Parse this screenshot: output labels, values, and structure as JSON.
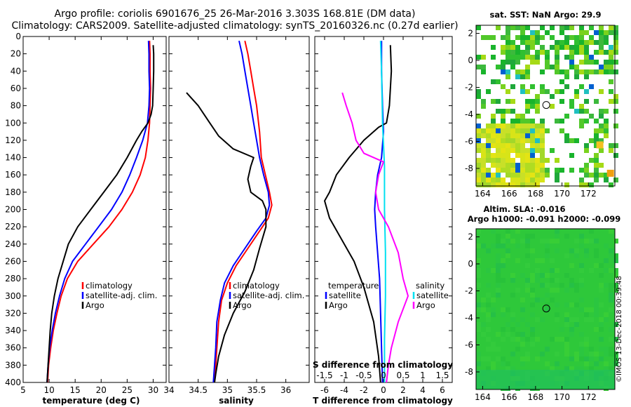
{
  "header": {
    "line1": "Argo profile: coriolis 6901676_25 26-Mar-2016 3.303S 168.81E (DM data)",
    "line2": "Climatology: CARS2009. Satellite-adjusted climatology: synTS_20160326.nc (0.27d earlier)"
  },
  "footer_stamp": "©IMOS 13-Dec-2018 00:39:48",
  "colors": {
    "climatology": "#ff0000",
    "satellite": "#0000ff",
    "argo": "#000000",
    "sat_s": "#00e0f0",
    "argo_s": "#ff00ff"
  },
  "chart_data": [
    {
      "id": "temperature",
      "type": "line",
      "xlabel": "temperature (deg C)",
      "ylabel": "",
      "xlim": [
        5,
        32.5
      ],
      "ylim": [
        400,
        0
      ],
      "xticks": [
        5,
        10,
        15,
        20,
        25,
        30
      ],
      "yticks": [
        0,
        20,
        40,
        60,
        80,
        100,
        120,
        140,
        160,
        180,
        200,
        220,
        240,
        260,
        280,
        300,
        320,
        340,
        360,
        380,
        400
      ],
      "legend": {
        "position": "bottom-center",
        "entries": [
          "climatology",
          "satellite-adj. clim.",
          "Argo"
        ]
      },
      "series": [
        {
          "name": "climatology",
          "color": "#ff0000",
          "points": [
            [
              29.3,
              5
            ],
            [
              29.4,
              20
            ],
            [
              29.4,
              40
            ],
            [
              29.5,
              60
            ],
            [
              29.4,
              80
            ],
            [
              29.3,
              100
            ],
            [
              29.0,
              120
            ],
            [
              28.5,
              140
            ],
            [
              27.5,
              160
            ],
            [
              26.0,
              180
            ],
            [
              24.0,
              200
            ],
            [
              21.5,
              220
            ],
            [
              18.5,
              240
            ],
            [
              15.5,
              260
            ],
            [
              13.5,
              280
            ],
            [
              12.3,
              300
            ],
            [
              11.5,
              320
            ],
            [
              10.8,
              340
            ],
            [
              10.3,
              360
            ],
            [
              9.9,
              380
            ],
            [
              9.7,
              400
            ]
          ]
        },
        {
          "name": "satellite-adj. clim.",
          "color": "#0000ff",
          "points": [
            [
              29.1,
              5
            ],
            [
              29.2,
              20
            ],
            [
              29.2,
              40
            ],
            [
              29.3,
              60
            ],
            [
              29.2,
              80
            ],
            [
              28.9,
              100
            ],
            [
              28.0,
              120
            ],
            [
              26.8,
              140
            ],
            [
              25.5,
              160
            ],
            [
              24.0,
              180
            ],
            [
              22.0,
              200
            ],
            [
              19.5,
              220
            ],
            [
              17.0,
              240
            ],
            [
              14.5,
              260
            ],
            [
              13.0,
              280
            ],
            [
              12.0,
              300
            ],
            [
              11.2,
              320
            ],
            [
              10.6,
              340
            ],
            [
              10.1,
              360
            ],
            [
              9.8,
              380
            ],
            [
              9.6,
              400
            ]
          ]
        },
        {
          "name": "Argo",
          "color": "#000000",
          "points": [
            [
              30.0,
              10
            ],
            [
              30.1,
              20
            ],
            [
              30.1,
              40
            ],
            [
              30.0,
              60
            ],
            [
              29.9,
              80
            ],
            [
              29.6,
              90
            ],
            [
              29.0,
              100
            ],
            [
              27.8,
              110
            ],
            [
              26.8,
              120
            ],
            [
              25.0,
              140
            ],
            [
              23.0,
              160
            ],
            [
              20.5,
              180
            ],
            [
              18.0,
              200
            ],
            [
              15.5,
              220
            ],
            [
              13.7,
              240
            ],
            [
              12.7,
              260
            ],
            [
              11.7,
              280
            ],
            [
              11.0,
              300
            ],
            [
              10.5,
              320
            ],
            [
              10.2,
              340
            ],
            [
              10.0,
              360
            ],
            [
              9.8,
              380
            ],
            [
              9.6,
              400
            ]
          ]
        }
      ]
    },
    {
      "id": "salinity",
      "type": "line",
      "xlabel": "salinity",
      "ylabel": "",
      "xlim": [
        34,
        36.4
      ],
      "ylim": [
        400,
        0
      ],
      "xticks": [
        34,
        34.5,
        35,
        35.5,
        36
      ],
      "xtick_labels": [
        "34",
        "34.5",
        "35",
        "35.5",
        "36"
      ],
      "legend": {
        "position": "bottom-center",
        "entries": [
          "climatology",
          "satellite-adj. clim.",
          "Argo"
        ]
      },
      "series": [
        {
          "name": "climatology",
          "color": "#ff0000",
          "points": [
            [
              35.3,
              5
            ],
            [
              35.35,
              20
            ],
            [
              35.4,
              40
            ],
            [
              35.45,
              60
            ],
            [
              35.5,
              80
            ],
            [
              35.55,
              110
            ],
            [
              35.58,
              140
            ],
            [
              35.65,
              160
            ],
            [
              35.72,
              180
            ],
            [
              35.76,
              195
            ],
            [
              35.7,
              210
            ],
            [
              35.55,
              225
            ],
            [
              35.35,
              245
            ],
            [
              35.15,
              265
            ],
            [
              35.0,
              285
            ],
            [
              34.9,
              305
            ],
            [
              34.85,
              330
            ],
            [
              34.82,
              360
            ],
            [
              34.8,
              380
            ],
            [
              34.78,
              400
            ]
          ]
        },
        {
          "name": "satellite-adj. clim.",
          "color": "#0000ff",
          "points": [
            [
              35.2,
              5
            ],
            [
              35.25,
              20
            ],
            [
              35.3,
              40
            ],
            [
              35.35,
              60
            ],
            [
              35.4,
              80
            ],
            [
              35.45,
              100
            ],
            [
              35.5,
              120
            ],
            [
              35.55,
              140
            ],
            [
              35.62,
              160
            ],
            [
              35.7,
              180
            ],
            [
              35.72,
              195
            ],
            [
              35.66,
              210
            ],
            [
              35.5,
              225
            ],
            [
              35.3,
              245
            ],
            [
              35.1,
              265
            ],
            [
              34.95,
              285
            ],
            [
              34.88,
              305
            ],
            [
              34.82,
              330
            ],
            [
              34.8,
              360
            ],
            [
              34.78,
              380
            ],
            [
              34.76,
              400
            ]
          ]
        },
        {
          "name": "Argo",
          "color": "#000000",
          "points": [
            [
              34.3,
              65
            ],
            [
              34.5,
              80
            ],
            [
              34.7,
              100
            ],
            [
              34.85,
              115
            ],
            [
              35.1,
              130
            ],
            [
              35.45,
              140
            ],
            [
              35.4,
              150
            ],
            [
              35.35,
              165
            ],
            [
              35.4,
              180
            ],
            [
              35.6,
              190
            ],
            [
              35.66,
              200
            ],
            [
              35.66,
              220
            ],
            [
              35.55,
              245
            ],
            [
              35.45,
              270
            ],
            [
              35.3,
              295
            ],
            [
              35.1,
              320
            ],
            [
              34.95,
              345
            ],
            [
              34.85,
              370
            ],
            [
              34.8,
              390
            ],
            [
              34.78,
              400
            ]
          ]
        }
      ]
    },
    {
      "id": "difference",
      "type": "line",
      "xlabel": "T difference from climatology",
      "top_axis_label": "S difference from climatology",
      "xlim": [
        -7,
        7
      ],
      "ylim": [
        400,
        0
      ],
      "xticks": [
        -6,
        -4,
        -2,
        0,
        2,
        4,
        6
      ],
      "top_ticks": [
        "-1.5",
        "-1",
        "-0.5",
        "0",
        "0.5",
        "1",
        "1.5"
      ],
      "legend": {
        "position": "bottom",
        "groups": [
          [
            "temperature",
            "satellite",
            "Argo"
          ],
          [
            "salinity",
            "satellite",
            "Argo"
          ]
        ]
      },
      "series": [
        {
          "name": "T satellite",
          "color": "#0000ff",
          "points": [
            [
              -0.2,
              5
            ],
            [
              -0.2,
              40
            ],
            [
              -0.1,
              80
            ],
            [
              0.0,
              110
            ],
            [
              -0.2,
              140
            ],
            [
              -0.6,
              160
            ],
            [
              -0.8,
              180
            ],
            [
              -0.9,
              200
            ],
            [
              -0.8,
              220
            ],
            [
              -0.6,
              250
            ],
            [
              -0.4,
              280
            ],
            [
              -0.3,
              320
            ],
            [
              -0.2,
              360
            ],
            [
              -0.1,
              400
            ]
          ]
        },
        {
          "name": "T Argo",
          "color": "#000000",
          "points": [
            [
              0.7,
              10
            ],
            [
              0.8,
              40
            ],
            [
              0.6,
              80
            ],
            [
              0.3,
              100
            ],
            [
              -0.5,
              105
            ],
            [
              -2.0,
              120
            ],
            [
              -3.5,
              140
            ],
            [
              -4.8,
              160
            ],
            [
              -5.5,
              180
            ],
            [
              -6.0,
              190
            ],
            [
              -5.5,
              210
            ],
            [
              -4.5,
              230
            ],
            [
              -3.0,
              260
            ],
            [
              -2.0,
              290
            ],
            [
              -1.0,
              330
            ],
            [
              -0.5,
              370
            ],
            [
              -0.3,
              400
            ]
          ]
        },
        {
          "name": "S satellite",
          "color": "#00e0f0",
          "points": [
            [
              -0.3,
              5
            ],
            [
              -0.2,
              40
            ],
            [
              -0.1,
              100
            ],
            [
              0.1,
              150
            ],
            [
              0.1,
              200
            ],
            [
              0.2,
              250
            ],
            [
              0.2,
              300
            ],
            [
              0.1,
              350
            ],
            [
              0.1,
              400
            ]
          ]
        },
        {
          "name": "S Argo",
          "color": "#ff00ff",
          "points": [
            [
              -4.2,
              65
            ],
            [
              -3.8,
              80
            ],
            [
              -3.2,
              100
            ],
            [
              -2.8,
              120
            ],
            [
              -2.0,
              135
            ],
            [
              0.0,
              145
            ],
            [
              -0.5,
              160
            ],
            [
              -0.8,
              180
            ],
            [
              -0.5,
              200
            ],
            [
              0.5,
              220
            ],
            [
              1.5,
              250
            ],
            [
              2.0,
              280
            ],
            [
              2.5,
              300
            ],
            [
              1.5,
              330
            ],
            [
              0.8,
              360
            ],
            [
              0.5,
              380
            ],
            [
              0.3,
              400
            ]
          ]
        }
      ]
    },
    {
      "id": "sst_map",
      "type": "heatmap",
      "title": "sat. SST: NaN Argo: 29.9",
      "xlim": [
        163.5,
        174
      ],
      "ylim": [
        -9.3,
        2.6
      ],
      "xticks": [
        164,
        166,
        168,
        170,
        172
      ],
      "yticks": [
        2,
        0,
        -2,
        -4,
        -6,
        -8
      ],
      "marker": [
        168.81,
        -3.303
      ]
    },
    {
      "id": "sla_map",
      "type": "heatmap",
      "title": "Altim. SLA: -0.016",
      "subtitle": "Argo h1000: -0.091 h2000: -0.099",
      "xlim": [
        163.5,
        174
      ],
      "ylim": [
        -9.3,
        2.6
      ],
      "xticks": [
        164,
        166,
        168,
        170,
        172
      ],
      "yticks": [
        2,
        0,
        -2,
        -4,
        -6,
        -8
      ],
      "marker": [
        168.81,
        -3.303
      ]
    }
  ]
}
